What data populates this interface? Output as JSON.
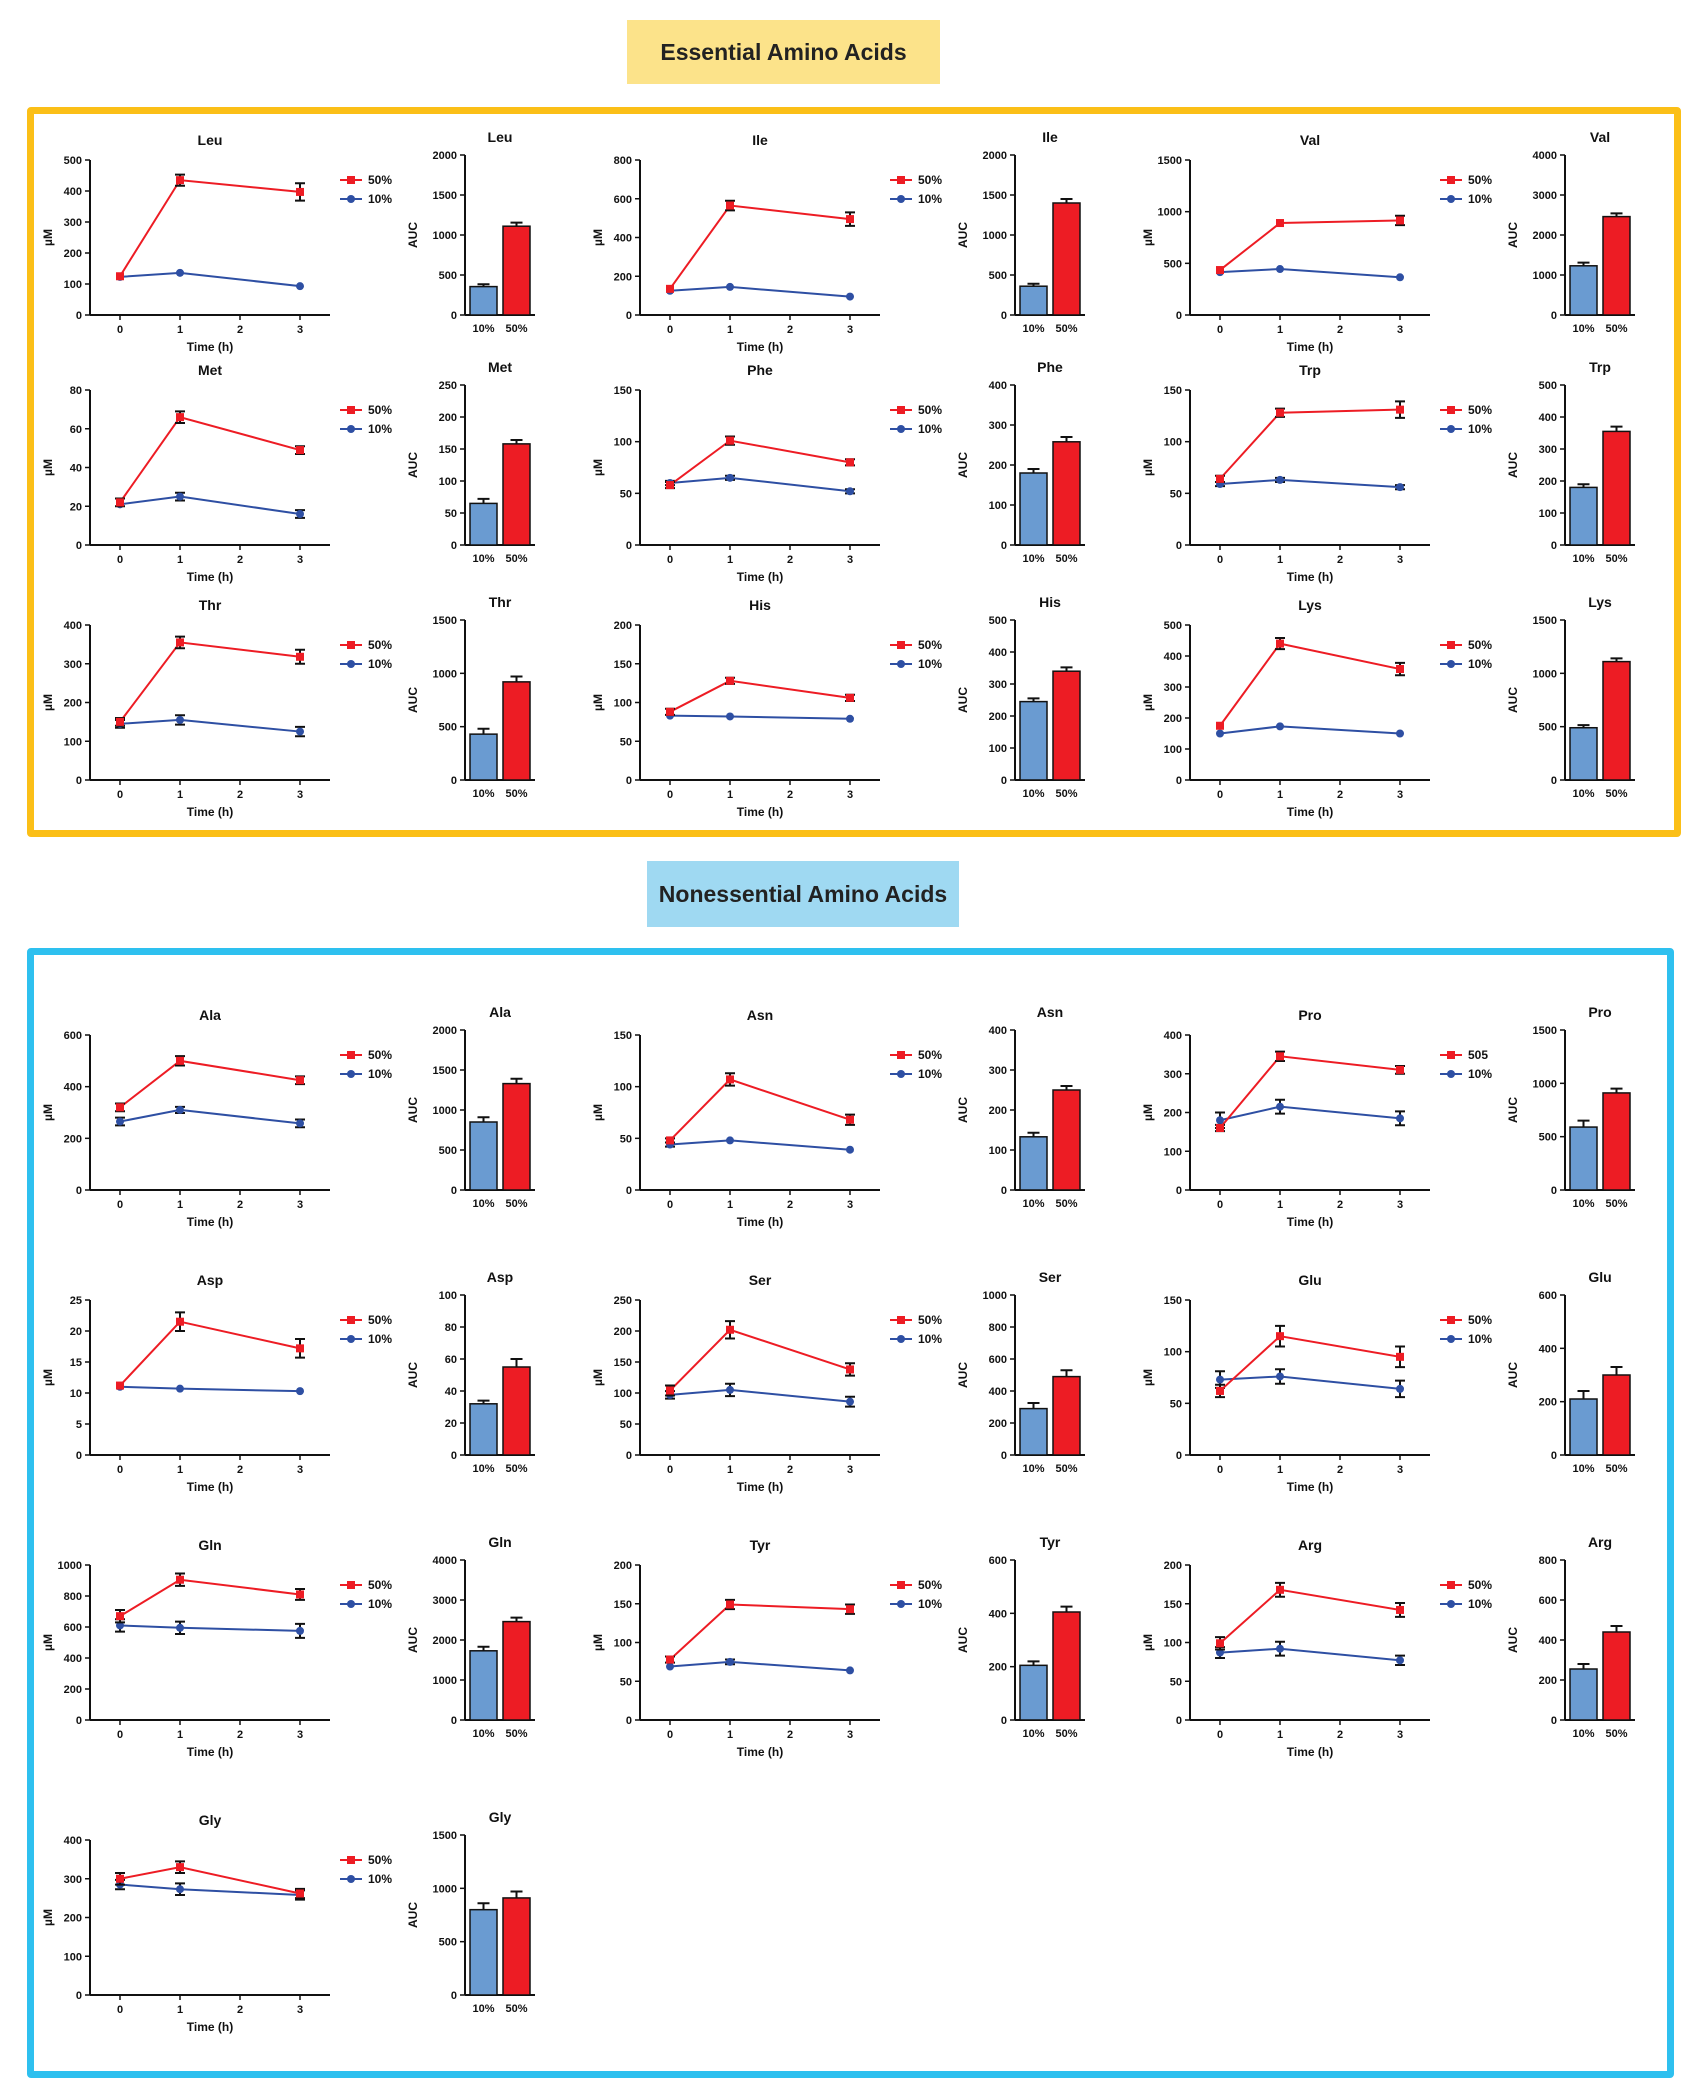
{
  "colors": {
    "essential_box": "#fbbf17",
    "essential_title_bg": "#fce38a",
    "nonessential_box": "#2ec0ef",
    "nonessential_title_bg": "#9fd9f2",
    "red": "#ed1c24",
    "blue_line": "#2e4fa3",
    "blue_bar": "#6a9bd1"
  },
  "sections": {
    "essential": "Essential Amino Acids",
    "nonessential": "Nonessential Amino Acids"
  },
  "chart_data": {
    "type": "line+bar",
    "line_common": {
      "xlabel": "Time (h)",
      "ylabel": "µM",
      "x": [
        0,
        1,
        3
      ],
      "xticks": [
        0,
        1,
        2,
        3
      ],
      "xlim": [
        -0.5,
        3.5
      ]
    },
    "bar_common": {
      "ylabel": "AUC",
      "categories": [
        "10%",
        "50%"
      ]
    },
    "panels": [
      {
        "section": "essential",
        "name": "Leu",
        "ylim": [
          0,
          500
        ],
        "ystep": 100,
        "series": [
          {
            "name": "50%",
            "values": [
              125,
              435,
              397
            ],
            "err": [
              5,
              18,
              28
            ]
          },
          {
            "name": "10%",
            "values": [
              123,
              136,
              93
            ],
            "err": [
              4,
              5,
              4
            ]
          }
        ],
        "bar": {
          "ylim": [
            0,
            2000
          ],
          "ystep": 500,
          "values": [
            355,
            1110
          ],
          "err": [
            30,
            45
          ]
        }
      },
      {
        "section": "essential",
        "name": "Ile",
        "ylim": [
          0,
          800
        ],
        "ystep": 200,
        "series": [
          {
            "name": "50%",
            "values": [
              135,
              565,
              495
            ],
            "err": [
              6,
              25,
              35
            ]
          },
          {
            "name": "10%",
            "values": [
              125,
              145,
              95
            ],
            "err": [
              5,
              5,
              4
            ]
          }
        ],
        "bar": {
          "ylim": [
            0,
            2000
          ],
          "ystep": 500,
          "values": [
            360,
            1400
          ],
          "err": [
            30,
            50
          ]
        }
      },
      {
        "section": "essential",
        "name": "Val",
        "ylim": [
          0,
          1500
        ],
        "ystep": 500,
        "series": [
          {
            "name": "50%",
            "values": [
              435,
              890,
              915
            ],
            "err": [
              15,
              15,
              45
            ]
          },
          {
            "name": "10%",
            "values": [
              415,
              445,
              365
            ],
            "err": [
              10,
              10,
              10
            ]
          }
        ],
        "bar": {
          "ylim": [
            0,
            4000
          ],
          "ystep": 1000,
          "values": [
            1230,
            2460
          ],
          "err": [
            80,
            80
          ]
        }
      },
      {
        "section": "essential",
        "name": "Met",
        "ylim": [
          0,
          80
        ],
        "ystep": 20,
        "series": [
          {
            "name": "50%",
            "values": [
              22,
              66,
              49
            ],
            "err": [
              2,
              3,
              2
            ]
          },
          {
            "name": "10%",
            "values": [
              21,
              25,
              16
            ],
            "err": [
              1,
              2,
              2
            ]
          }
        ],
        "bar": {
          "ylim": [
            0,
            250
          ],
          "ystep": 50,
          "values": [
            65,
            158
          ],
          "err": [
            7,
            6
          ]
        }
      },
      {
        "section": "essential",
        "name": "Phe",
        "ylim": [
          0,
          150
        ],
        "ystep": 50,
        "series": [
          {
            "name": "50%",
            "values": [
              58,
              101,
              80
            ],
            "err": [
              3,
              4,
              3
            ]
          },
          {
            "name": "10%",
            "values": [
              60,
              65,
              52
            ],
            "err": [
              2,
              2,
              2
            ]
          }
        ],
        "bar": {
          "ylim": [
            0,
            400
          ],
          "ystep": 100,
          "values": [
            180,
            258
          ],
          "err": [
            10,
            12
          ]
        }
      },
      {
        "section": "essential",
        "name": "Trp",
        "ylim": [
          0,
          150
        ],
        "ystep": 50,
        "series": [
          {
            "name": "50%",
            "values": [
              64,
              128,
              131
            ],
            "err": [
              3,
              4,
              8
            ]
          },
          {
            "name": "10%",
            "values": [
              59,
              63,
              56
            ],
            "err": [
              2,
              2,
              2
            ]
          }
        ],
        "bar": {
          "ylim": [
            0,
            500
          ],
          "ystep": 100,
          "values": [
            180,
            355
          ],
          "err": [
            10,
            15
          ]
        }
      },
      {
        "section": "essential",
        "name": "Thr",
        "ylim": [
          0,
          400
        ],
        "ystep": 100,
        "series": [
          {
            "name": "50%",
            "values": [
              150,
              355,
              318
            ],
            "err": [
              10,
              15,
              18
            ]
          },
          {
            "name": "10%",
            "values": [
              145,
              155,
              125
            ],
            "err": [
              10,
              12,
              12
            ]
          }
        ],
        "bar": {
          "ylim": [
            0,
            1500
          ],
          "ystep": 500,
          "values": [
            430,
            920
          ],
          "err": [
            50,
            50
          ]
        }
      },
      {
        "section": "essential",
        "name": "His",
        "ylim": [
          0,
          200
        ],
        "ystep": 50,
        "series": [
          {
            "name": "50%",
            "values": [
              88,
              128,
              106
            ],
            "err": [
              4,
              4,
              4
            ]
          },
          {
            "name": "10%",
            "values": [
              83,
              82,
              79
            ],
            "err": [
              2,
              2,
              2
            ]
          }
        ],
        "bar": {
          "ylim": [
            0,
            500
          ],
          "ystep": 100,
          "values": [
            245,
            340
          ],
          "err": [
            10,
            12
          ]
        }
      },
      {
        "section": "essential",
        "name": "Lys",
        "ylim": [
          0,
          500
        ],
        "ystep": 100,
        "series": [
          {
            "name": "50%",
            "values": [
              175,
              440,
              358
            ],
            "err": [
              6,
              18,
              20
            ]
          },
          {
            "name": "10%",
            "values": [
              150,
              173,
              150
            ],
            "err": [
              4,
              4,
              4
            ]
          }
        ],
        "bar": {
          "ylim": [
            0,
            1500
          ],
          "ystep": 500,
          "values": [
            490,
            1110
          ],
          "err": [
            25,
            30
          ]
        }
      },
      {
        "section": "nonessential",
        "name": "Ala",
        "ylim": [
          0,
          600
        ],
        "ystep": 200,
        "series": [
          {
            "name": "50%",
            "values": [
              320,
              500,
              425
            ],
            "err": [
              15,
              18,
              15
            ]
          },
          {
            "name": "10%",
            "values": [
              265,
              310,
              258
            ],
            "err": [
              15,
              12,
              15
            ]
          }
        ],
        "bar": {
          "ylim": [
            0,
            2000
          ],
          "ystep": 500,
          "values": [
            850,
            1330
          ],
          "err": [
            60,
            60
          ]
        }
      },
      {
        "section": "nonessential",
        "name": "Asn",
        "ylim": [
          0,
          150
        ],
        "ystep": 50,
        "series": [
          {
            "name": "50%",
            "values": [
              48,
              107,
              68
            ],
            "err": [
              2,
              6,
              5
            ]
          },
          {
            "name": "10%",
            "values": [
              44,
              48,
              39
            ],
            "err": [
              2,
              1,
              1
            ]
          }
        ],
        "bar": {
          "ylim": [
            0,
            400
          ],
          "ystep": 100,
          "values": [
            133,
            250
          ],
          "err": [
            10,
            10
          ]
        }
      },
      {
        "section": "nonessential",
        "name": "Pro",
        "ylim": [
          0,
          400
        ],
        "ystep": 100,
        "series": [
          {
            "name": "505",
            "values": [
              160,
              345,
              310
            ],
            "err": [
              8,
              12,
              10
            ]
          },
          {
            "name": "10%",
            "values": [
              180,
              215,
              185
            ],
            "err": [
              20,
              18,
              18
            ]
          }
        ],
        "bar": {
          "ylim": [
            0,
            1500
          ],
          "ystep": 500,
          "values": [
            590,
            910
          ],
          "err": [
            60,
            40
          ]
        }
      },
      {
        "section": "nonessential",
        "name": "Asp",
        "ylim": [
          0,
          25
        ],
        "ystep": 5,
        "series": [
          {
            "name": "50%",
            "values": [
              11.2,
              21.5,
              17.2
            ],
            "err": [
              0.3,
              1.5,
              1.5
            ]
          },
          {
            "name": "10%",
            "values": [
              11,
              10.7,
              10.3
            ],
            "err": [
              0.2,
              0.2,
              0.2
            ]
          }
        ],
        "bar": {
          "ylim": [
            0,
            100
          ],
          "ystep": 20,
          "values": [
            32,
            55
          ],
          "err": [
            2,
            5
          ]
        }
      },
      {
        "section": "nonessential",
        "name": "Ser",
        "ylim": [
          0,
          250
        ],
        "ystep": 50,
        "series": [
          {
            "name": "50%",
            "values": [
              104,
              202,
              138
            ],
            "err": [
              8,
              14,
              10
            ]
          },
          {
            "name": "10%",
            "values": [
              97,
              105,
              86
            ],
            "err": [
              6,
              10,
              8
            ]
          }
        ],
        "bar": {
          "ylim": [
            0,
            1000
          ],
          "ystep": 200,
          "values": [
            290,
            490
          ],
          "err": [
            35,
            40
          ]
        }
      },
      {
        "section": "nonessential",
        "name": "Glu",
        "ylim": [
          0,
          150
        ],
        "ystep": 50,
        "series": [
          {
            "name": "50%",
            "values": [
              62,
              115,
              95
            ],
            "err": [
              6,
              10,
              10
            ]
          },
          {
            "name": "10%",
            "values": [
              73,
              76,
              64
            ],
            "err": [
              8,
              7,
              8
            ]
          }
        ],
        "bar": {
          "ylim": [
            0,
            600
          ],
          "ystep": 200,
          "values": [
            210,
            300
          ],
          "err": [
            30,
            30
          ]
        }
      },
      {
        "section": "nonessential",
        "name": "Gln",
        "ylim": [
          0,
          1000
        ],
        "ystep": 200,
        "series": [
          {
            "name": "50%",
            "values": [
              670,
              905,
              810
            ],
            "err": [
              40,
              40,
              35
            ]
          },
          {
            "name": "10%",
            "values": [
              610,
              595,
              575
            ],
            "err": [
              40,
              40,
              45
            ]
          }
        ],
        "bar": {
          "ylim": [
            0,
            4000
          ],
          "ystep": 1000,
          "values": [
            1730,
            2460
          ],
          "err": [
            100,
            100
          ]
        }
      },
      {
        "section": "nonessential",
        "name": "Tyr",
        "ylim": [
          0,
          200
        ],
        "ystep": 50,
        "series": [
          {
            "name": "50%",
            "values": [
              78,
              149,
              143
            ],
            "err": [
              4,
              6,
              6
            ]
          },
          {
            "name": "10%",
            "values": [
              69,
              75,
              64
            ],
            "err": [
              2,
              3,
              2
            ]
          }
        ],
        "bar": {
          "ylim": [
            0,
            600
          ],
          "ystep": 200,
          "values": [
            205,
            405
          ],
          "err": [
            15,
            20
          ]
        }
      },
      {
        "section": "nonessential",
        "name": "Arg",
        "ylim": [
          0,
          200
        ],
        "ystep": 50,
        "series": [
          {
            "name": "50%",
            "values": [
              99,
              168,
              142
            ],
            "err": [
              8,
              9,
              9
            ]
          },
          {
            "name": "10%",
            "values": [
              87,
              92,
              77
            ],
            "err": [
              7,
              9,
              6
            ]
          }
        ],
        "bar": {
          "ylim": [
            0,
            800
          ],
          "ystep": 200,
          "values": [
            255,
            440
          ],
          "err": [
            25,
            30
          ]
        }
      },
      {
        "section": "nonessential",
        "name": "Gly",
        "ylim": [
          0,
          400
        ],
        "ystep": 100,
        "series": [
          {
            "name": "50%",
            "values": [
              300,
              330,
              262
            ],
            "err": [
              15,
              15,
              12
            ]
          },
          {
            "name": "10%",
            "values": [
              285,
              273,
              258
            ],
            "err": [
              12,
              15,
              12
            ]
          }
        ],
        "bar": {
          "ylim": [
            0,
            1500
          ],
          "ystep": 500,
          "values": [
            800,
            910
          ],
          "err": [
            60,
            60
          ]
        }
      }
    ]
  }
}
